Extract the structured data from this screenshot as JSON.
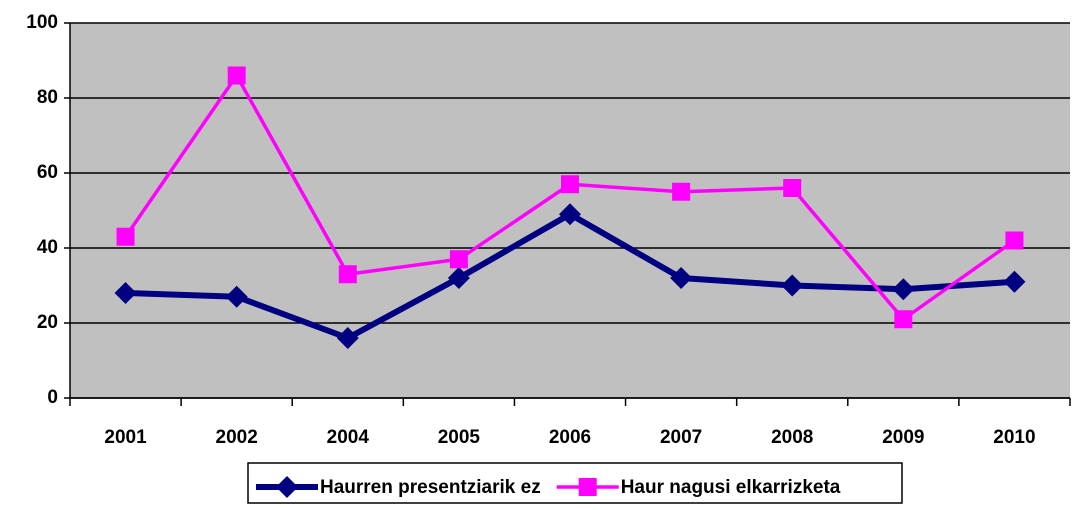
{
  "chart_data": {
    "type": "line",
    "categories": [
      "2001",
      "2002",
      "2004",
      "2005",
      "2006",
      "2007",
      "2008",
      "2009",
      "2010"
    ],
    "series": [
      {
        "name": "Haurren presentziarik ez",
        "color": "#000080",
        "marker": "diamond",
        "values": [
          28,
          27,
          16,
          32,
          49,
          32,
          30,
          29,
          31
        ]
      },
      {
        "name": "Haur nagusi elkarrizketa",
        "color": "#ff00ff",
        "marker": "square",
        "values": [
          43,
          86,
          33,
          37,
          57,
          55,
          56,
          21,
          42
        ]
      }
    ],
    "ylim": [
      0,
      100
    ],
    "yticks": [
      0,
      20,
      40,
      60,
      80,
      100
    ],
    "grid": true,
    "plot_background": "#c0c0c0",
    "legend": "bottom"
  }
}
